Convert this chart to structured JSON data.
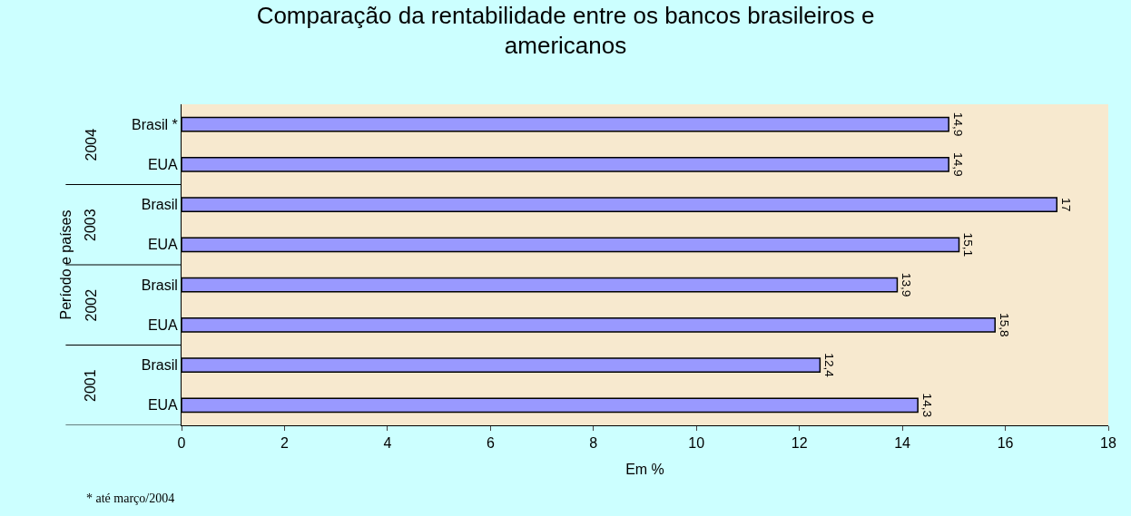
{
  "chart_data": {
    "type": "bar",
    "orientation": "horizontal",
    "title": "Comparação da rentabilidade entre os bancos brasileiros e americanos",
    "xlabel": "Em %",
    "ylabel": "Período e países",
    "categories": [
      "Brasil *",
      "EUA",
      "Brasil",
      "EUA",
      "Brasil",
      "EUA",
      "Brasil",
      "EUA"
    ],
    "values": [
      14.9,
      14.9,
      17,
      15.1,
      13.9,
      15.8,
      12.4,
      14.3
    ],
    "value_labels": [
      "14,9",
      "14,9",
      "17",
      "15,1",
      "13,9",
      "15,8",
      "12,4",
      "14,3"
    ],
    "color": "#9999ff",
    "xlim": [
      0,
      18
    ],
    "xticks": [
      0,
      2,
      4,
      6,
      8,
      10,
      12,
      14,
      16,
      18
    ],
    "grid": false,
    "legend": false,
    "annotations": [
      "2004",
      "2003",
      "2002",
      "2001",
      "* até março/2004"
    ]
  }
}
